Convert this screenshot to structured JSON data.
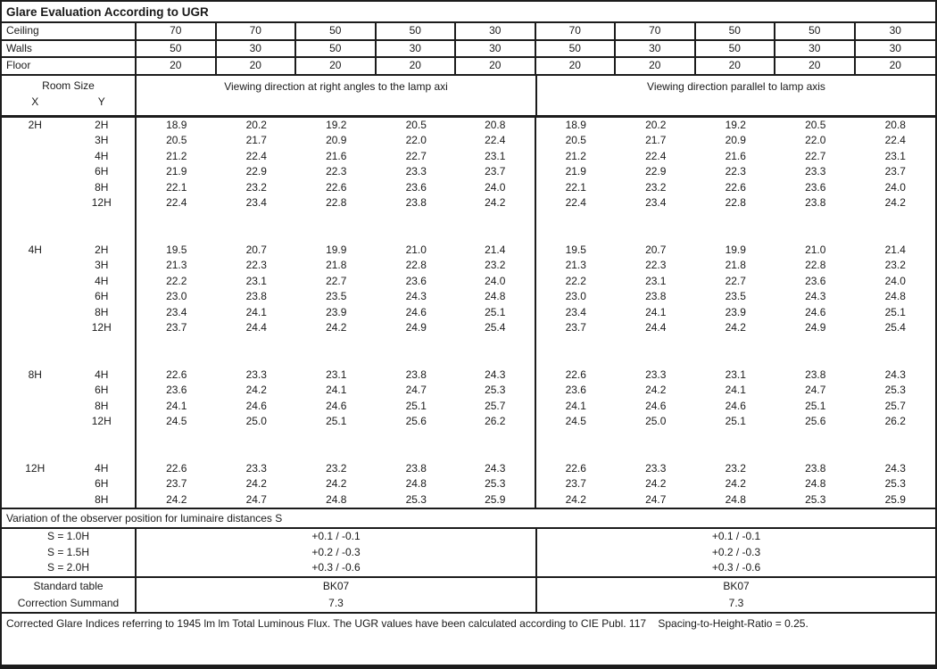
{
  "title": "Glare Evaluation According to UGR",
  "surface_reflectances": {
    "rows": [
      {
        "label": "Ceiling",
        "values": [
          "70",
          "70",
          "50",
          "50",
          "30",
          "70",
          "70",
          "50",
          "50",
          "30"
        ]
      },
      {
        "label": "Walls",
        "values": [
          "50",
          "30",
          "50",
          "30",
          "30",
          "50",
          "30",
          "50",
          "30",
          "30"
        ]
      },
      {
        "label": "Floor",
        "values": [
          "20",
          "20",
          "20",
          "20",
          "20",
          "20",
          "20",
          "20",
          "20",
          "20"
        ]
      }
    ]
  },
  "header": {
    "room_size_label": "Room Size",
    "x_label": "X",
    "y_label": "Y",
    "left_half_label": "Viewing direction at right angles to the lamp axi",
    "right_half_label": "Viewing direction parallel to lamp axis"
  },
  "ugr_table": {
    "blocks": [
      {
        "x": "2H",
        "rows": [
          {
            "y": "2H",
            "values": [
              "18.9",
              "20.2",
              "19.2",
              "20.5",
              "20.8",
              "18.9",
              "20.2",
              "19.2",
              "20.5",
              "20.8"
            ]
          },
          {
            "y": "3H",
            "values": [
              "20.5",
              "21.7",
              "20.9",
              "22.0",
              "22.4",
              "20.5",
              "21.7",
              "20.9",
              "22.0",
              "22.4"
            ]
          },
          {
            "y": "4H",
            "values": [
              "21.2",
              "22.4",
              "21.6",
              "22.7",
              "23.1",
              "21.2",
              "22.4",
              "21.6",
              "22.7",
              "23.1"
            ]
          },
          {
            "y": "6H",
            "values": [
              "21.9",
              "22.9",
              "22.3",
              "23.3",
              "23.7",
              "21.9",
              "22.9",
              "22.3",
              "23.3",
              "23.7"
            ]
          },
          {
            "y": "8H",
            "values": [
              "22.1",
              "23.2",
              "22.6",
              "23.6",
              "24.0",
              "22.1",
              "23.2",
              "22.6",
              "23.6",
              "24.0"
            ]
          },
          {
            "y": "12H",
            "values": [
              "22.4",
              "23.4",
              "22.8",
              "23.8",
              "24.2",
              "22.4",
              "23.4",
              "22.8",
              "23.8",
              "24.2"
            ]
          }
        ]
      },
      {
        "x": "4H",
        "rows": [
          {
            "y": "2H",
            "values": [
              "19.5",
              "20.7",
              "19.9",
              "21.0",
              "21.4",
              "19.5",
              "20.7",
              "19.9",
              "21.0",
              "21.4"
            ]
          },
          {
            "y": "3H",
            "values": [
              "21.3",
              "22.3",
              "21.8",
              "22.8",
              "23.2",
              "21.3",
              "22.3",
              "21.8",
              "22.8",
              "23.2"
            ]
          },
          {
            "y": "4H",
            "values": [
              "22.2",
              "23.1",
              "22.7",
              "23.6",
              "24.0",
              "22.2",
              "23.1",
              "22.7",
              "23.6",
              "24.0"
            ]
          },
          {
            "y": "6H",
            "values": [
              "23.0",
              "23.8",
              "23.5",
              "24.3",
              "24.8",
              "23.0",
              "23.8",
              "23.5",
              "24.3",
              "24.8"
            ]
          },
          {
            "y": "8H",
            "values": [
              "23.4",
              "24.1",
              "23.9",
              "24.6",
              "25.1",
              "23.4",
              "24.1",
              "23.9",
              "24.6",
              "25.1"
            ]
          },
          {
            "y": "12H",
            "values": [
              "23.7",
              "24.4",
              "24.2",
              "24.9",
              "25.4",
              "23.7",
              "24.4",
              "24.2",
              "24.9",
              "25.4"
            ]
          }
        ]
      },
      {
        "x": "8H",
        "rows": [
          {
            "y": "4H",
            "values": [
              "22.6",
              "23.3",
              "23.1",
              "23.8",
              "24.3",
              "22.6",
              "23.3",
              "23.1",
              "23.8",
              "24.3"
            ]
          },
          {
            "y": "6H",
            "values": [
              "23.6",
              "24.2",
              "24.1",
              "24.7",
              "25.3",
              "23.6",
              "24.2",
              "24.1",
              "24.7",
              "25.3"
            ]
          },
          {
            "y": "8H",
            "values": [
              "24.1",
              "24.6",
              "24.6",
              "25.1",
              "25.7",
              "24.1",
              "24.6",
              "24.6",
              "25.1",
              "25.7"
            ]
          },
          {
            "y": "12H",
            "values": [
              "24.5",
              "25.0",
              "25.1",
              "25.6",
              "26.2",
              "24.5",
              "25.0",
              "25.1",
              "25.6",
              "26.2"
            ]
          }
        ]
      },
      {
        "x": "12H",
        "rows": [
          {
            "y": "4H",
            "values": [
              "22.6",
              "23.3",
              "23.2",
              "23.8",
              "24.3",
              "22.6",
              "23.3",
              "23.2",
              "23.8",
              "24.3"
            ]
          },
          {
            "y": "6H",
            "values": [
              "23.7",
              "24.2",
              "24.2",
              "24.8",
              "25.3",
              "23.7",
              "24.2",
              "24.2",
              "24.8",
              "25.3"
            ]
          },
          {
            "y": "8H",
            "values": [
              "24.2",
              "24.7",
              "24.8",
              "25.3",
              "25.9",
              "24.2",
              "24.7",
              "24.8",
              "25.3",
              "25.9"
            ]
          }
        ]
      }
    ]
  },
  "variation": {
    "section_label": "Variation of the observer position for luminaire distances S",
    "rows": [
      {
        "label": "S = 1.0H",
        "left": "+0.1 / -0.1",
        "right": "+0.1 / -0.1"
      },
      {
        "label": "S = 1.5H",
        "left": "+0.2 / -0.3",
        "right": "+0.2 / -0.3"
      },
      {
        "label": "S = 2.0H",
        "left": "+0.3 / -0.6",
        "right": "+0.3 / -0.6"
      }
    ]
  },
  "summary": {
    "rows": [
      {
        "label": "Standard table",
        "left": "BK07",
        "right": "BK07"
      },
      {
        "label": "Correction Summand",
        "left": "7.3",
        "right": "7.3"
      }
    ]
  },
  "footer_note": "Corrected Glare Indices referring to 1945 lm lm Total Luminous Flux. The UGR values have been calculated according to CIE Publ. 117    Spacing-to-Height-Ratio = 0.25."
}
